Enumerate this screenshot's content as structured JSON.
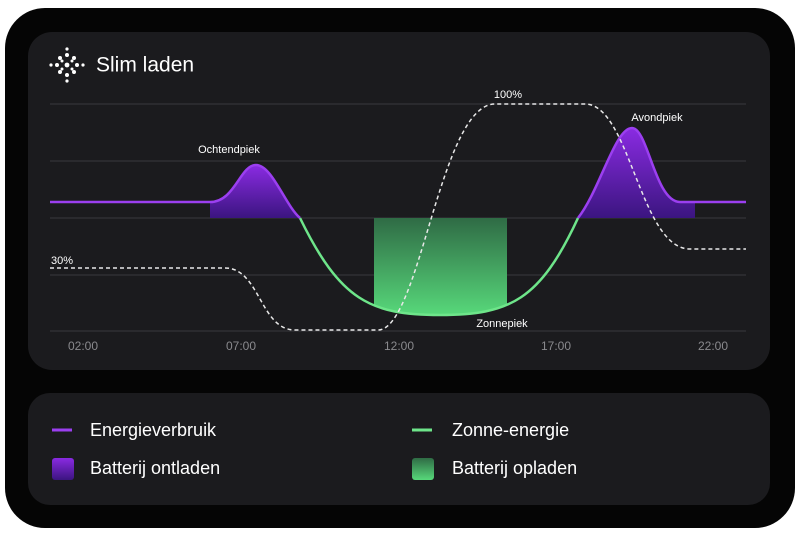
{
  "header": {
    "title": "Slim laden"
  },
  "chart": {
    "x_labels": [
      "02:00",
      "07:00",
      "12:00",
      "17:00",
      "22:00"
    ],
    "annotations": {
      "morning_peak": "Ochtendpiek",
      "evening_peak": "Avondpiek",
      "solar_peak": "Zonnepiek",
      "battery_max": "100%",
      "battery_start": "30%"
    }
  },
  "legend": {
    "items": [
      "Energieverbruik",
      "Zonne-energie",
      "Batterij ontladen",
      "Batterij opladen"
    ]
  }
}
